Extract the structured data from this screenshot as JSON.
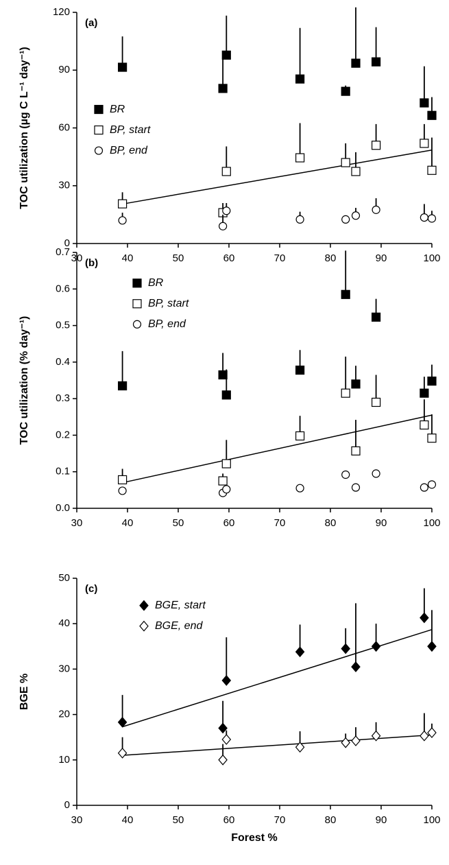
{
  "chart_data": [
    {
      "type": "scatter",
      "panel_label": "(a)",
      "ylabel": "TOC utilization (µg C L⁻¹ day⁻¹)",
      "x": [
        39,
        58.8,
        59.5,
        74,
        83,
        85,
        89,
        98.5,
        100
      ],
      "xlim": [
        30,
        100
      ],
      "xticks": [
        30,
        40,
        50,
        60,
        70,
        80,
        90,
        100
      ],
      "ylim": [
        0,
        120
      ],
      "yticks": [
        0,
        30,
        60,
        90,
        120
      ],
      "legend": "center left",
      "series": [
        {
          "name": "BR",
          "marker": "square-filled",
          "color": "#000000",
          "values": [
            91.5,
            80.5,
            97.8,
            85.4,
            79,
            93.6,
            94.3,
            73,
            66.5
          ],
          "errors": [
            16,
            17,
            20.5,
            26.5,
            3,
            29,
            18,
            19,
            9.5
          ]
        },
        {
          "name": "BP, start",
          "marker": "square-open",
          "color": "#000000",
          "values": [
            20.6,
            16,
            37.4,
            44.5,
            42,
            37.4,
            51,
            52,
            38
          ],
          "errors": [
            6,
            5,
            13,
            18,
            10,
            10,
            11,
            10,
            17
          ],
          "fit": {
            "x": [
              39,
              100
            ],
            "values": [
              20.5,
              48.5
            ]
          }
        },
        {
          "name": "BP, end",
          "marker": "circle-open",
          "color": "#000000",
          "values": [
            12,
            9,
            17,
            12.5,
            12.5,
            14.5,
            17.5,
            13.5,
            13
          ],
          "errors": [
            4,
            6,
            4,
            4,
            1,
            4,
            6,
            7,
            4
          ]
        }
      ]
    },
    {
      "type": "scatter",
      "panel_label": "(b)",
      "ylabel": "TOC utilization (% day⁻¹)",
      "x": [
        39,
        58.8,
        59.5,
        74,
        83,
        85,
        89,
        98.5,
        100
      ],
      "xlim": [
        30,
        100
      ],
      "xticks": [
        30,
        40,
        50,
        60,
        70,
        80,
        90,
        100
      ],
      "ylim": [
        0,
        0.7
      ],
      "yticks": [
        {
          "value": 0,
          "label": "0.0"
        },
        0.1,
        0.2,
        0.3,
        0.4,
        0.5,
        0.6,
        0.7
      ],
      "legend": "upper left",
      "series": [
        {
          "name": "BR",
          "marker": "square-filled",
          "color": "#000000",
          "values": [
            0.335,
            0.365,
            0.31,
            0.378,
            0.585,
            0.34,
            0.523,
            0.315,
            0.348
          ],
          "errors": [
            0.095,
            0.06,
            0.07,
            0.055,
            0.12,
            0.05,
            0.05,
            0.045,
            0.045
          ]
        },
        {
          "name": "BP, start",
          "marker": "square-open",
          "color": "#000000",
          "values": [
            0.078,
            0.075,
            0.122,
            0.198,
            0.315,
            0.157,
            0.29,
            0.228,
            0.192
          ],
          "errors": [
            0.03,
            0.02,
            0.065,
            0.055,
            0.1,
            0.085,
            0.075,
            0.07,
            0.065
          ],
          "fit": {
            "x": [
              39,
              100
            ],
            "values": [
              0.07,
              0.255
            ]
          }
        },
        {
          "name": "BP, end",
          "marker": "circle-open",
          "color": "#000000",
          "values": [
            0.048,
            0.042,
            0.052,
            0.055,
            0.092,
            0.057,
            0.095,
            0.057,
            0.065
          ]
        }
      ]
    },
    {
      "type": "scatter",
      "panel_label": "(c)",
      "ylabel": "BGE %",
      "xlabel": "Forest %",
      "x": [
        39,
        58.8,
        59.5,
        74,
        83,
        85,
        89,
        98.5,
        100
      ],
      "xlim": [
        30,
        100
      ],
      "xticks": [
        30,
        40,
        50,
        60,
        70,
        80,
        90,
        100
      ],
      "ylim": [
        0,
        50
      ],
      "yticks": [
        0,
        10,
        20,
        30,
        40,
        50
      ],
      "legend": "upper left",
      "series": [
        {
          "name": "BGE, start",
          "marker": "diamond-filled",
          "color": "#000000",
          "values": [
            18.3,
            17,
            27.5,
            33.8,
            34.5,
            30.5,
            35,
            41.3,
            35
          ],
          "errors": [
            6,
            6,
            9.5,
            6,
            4.5,
            14,
            5,
            6.5,
            8
          ],
          "fit": {
            "x": [
              39,
              100
            ],
            "values": [
              17.3,
              38.7
            ]
          }
        },
        {
          "name": "BGE, end",
          "marker": "diamond-open",
          "color": "#000000",
          "values": [
            11.5,
            10,
            14.5,
            12.8,
            13.8,
            14.2,
            15.3,
            15.3,
            16
          ],
          "errors": [
            3.5,
            3.5,
            2,
            3.5,
            2,
            3,
            3,
            5,
            2
          ],
          "fit": {
            "x": [
              39,
              100
            ],
            "values": [
              11,
              15.5
            ]
          }
        }
      ]
    }
  ]
}
